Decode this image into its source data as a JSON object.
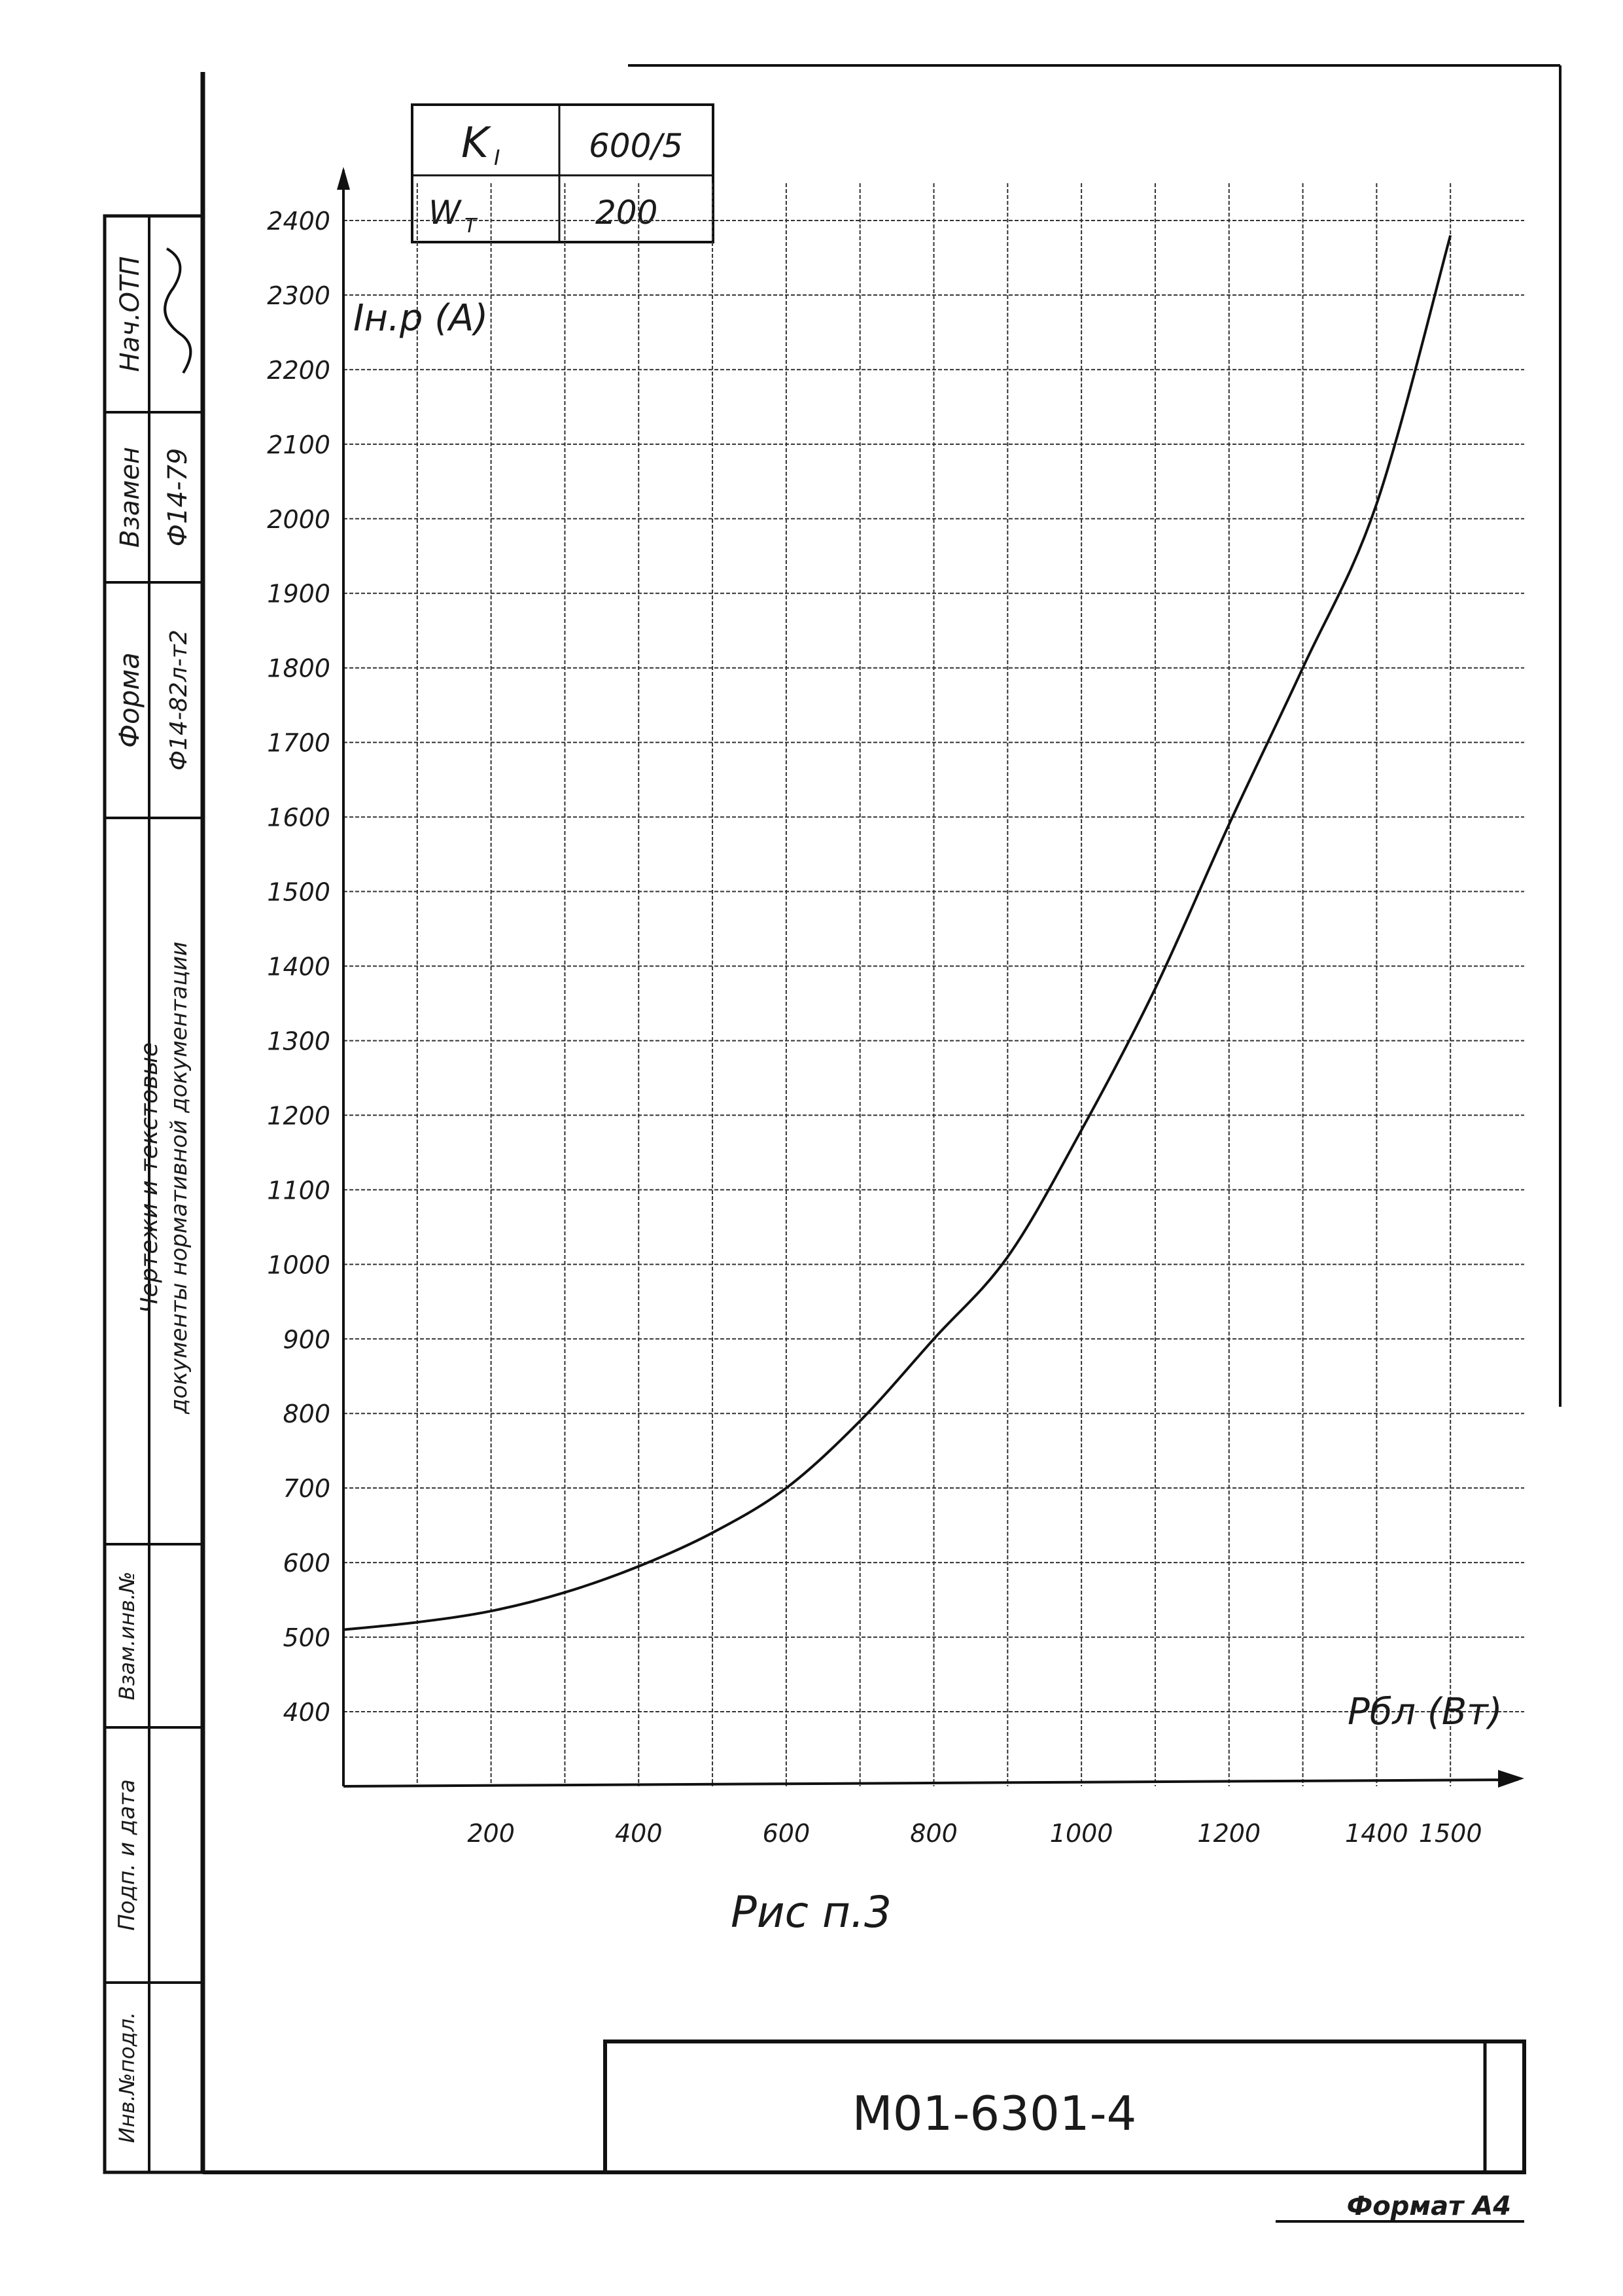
{
  "parameters": [
    {
      "name": "K",
      "subscript": "I",
      "value": "600/5"
    },
    {
      "name": "W",
      "subscript": "T",
      "value": "200"
    }
  ],
  "side_stamp": {
    "forma_label": "Форма",
    "forma_value": "Ф14-82л-т2",
    "vzamen_label": "Взамен",
    "vzamen_value": "Ф14-79",
    "nach_otp_label": "Нач.ОТП",
    "description_line1": "Чертежи и текстовые",
    "description_line2": "документы нормативной документации",
    "vzam_inv_label": "Взам.инв.№",
    "podp_data_label": "Подп. и дата",
    "inv_podl_label": "Инв.№подл."
  },
  "figure_caption": "Рис п.3",
  "document_code": "М01-6301-4",
  "format_label": "Формат А4",
  "chart_data": {
    "type": "line",
    "ylabel": "Iн.р (A)",
    "xlabel": "Pбл (Вт)",
    "x_ticks": [
      "200",
      "400",
      "600",
      "800",
      "1000",
      "1200",
      "1400",
      "1500"
    ],
    "y_ticks": [
      "400",
      "500",
      "600",
      "700",
      "800",
      "900",
      "1000",
      "1100",
      "1200",
      "1300",
      "1400",
      "1500",
      "1600",
      "1700",
      "1800",
      "1900",
      "2000",
      "2100",
      "2200",
      "2300",
      "2400"
    ],
    "ylim": [
      300,
      2450
    ],
    "grid": true,
    "series": [
      {
        "x": [
          0,
          100,
          200,
          300,
          400,
          500,
          600,
          700,
          800,
          900,
          1000,
          1100,
          1200,
          1300,
          1400,
          1500
        ],
        "y": [
          510,
          520,
          535,
          560,
          595,
          640,
          700,
          790,
          900,
          1010,
          1180,
          1370,
          1590,
          1800,
          2020,
          2380
        ]
      }
    ]
  }
}
